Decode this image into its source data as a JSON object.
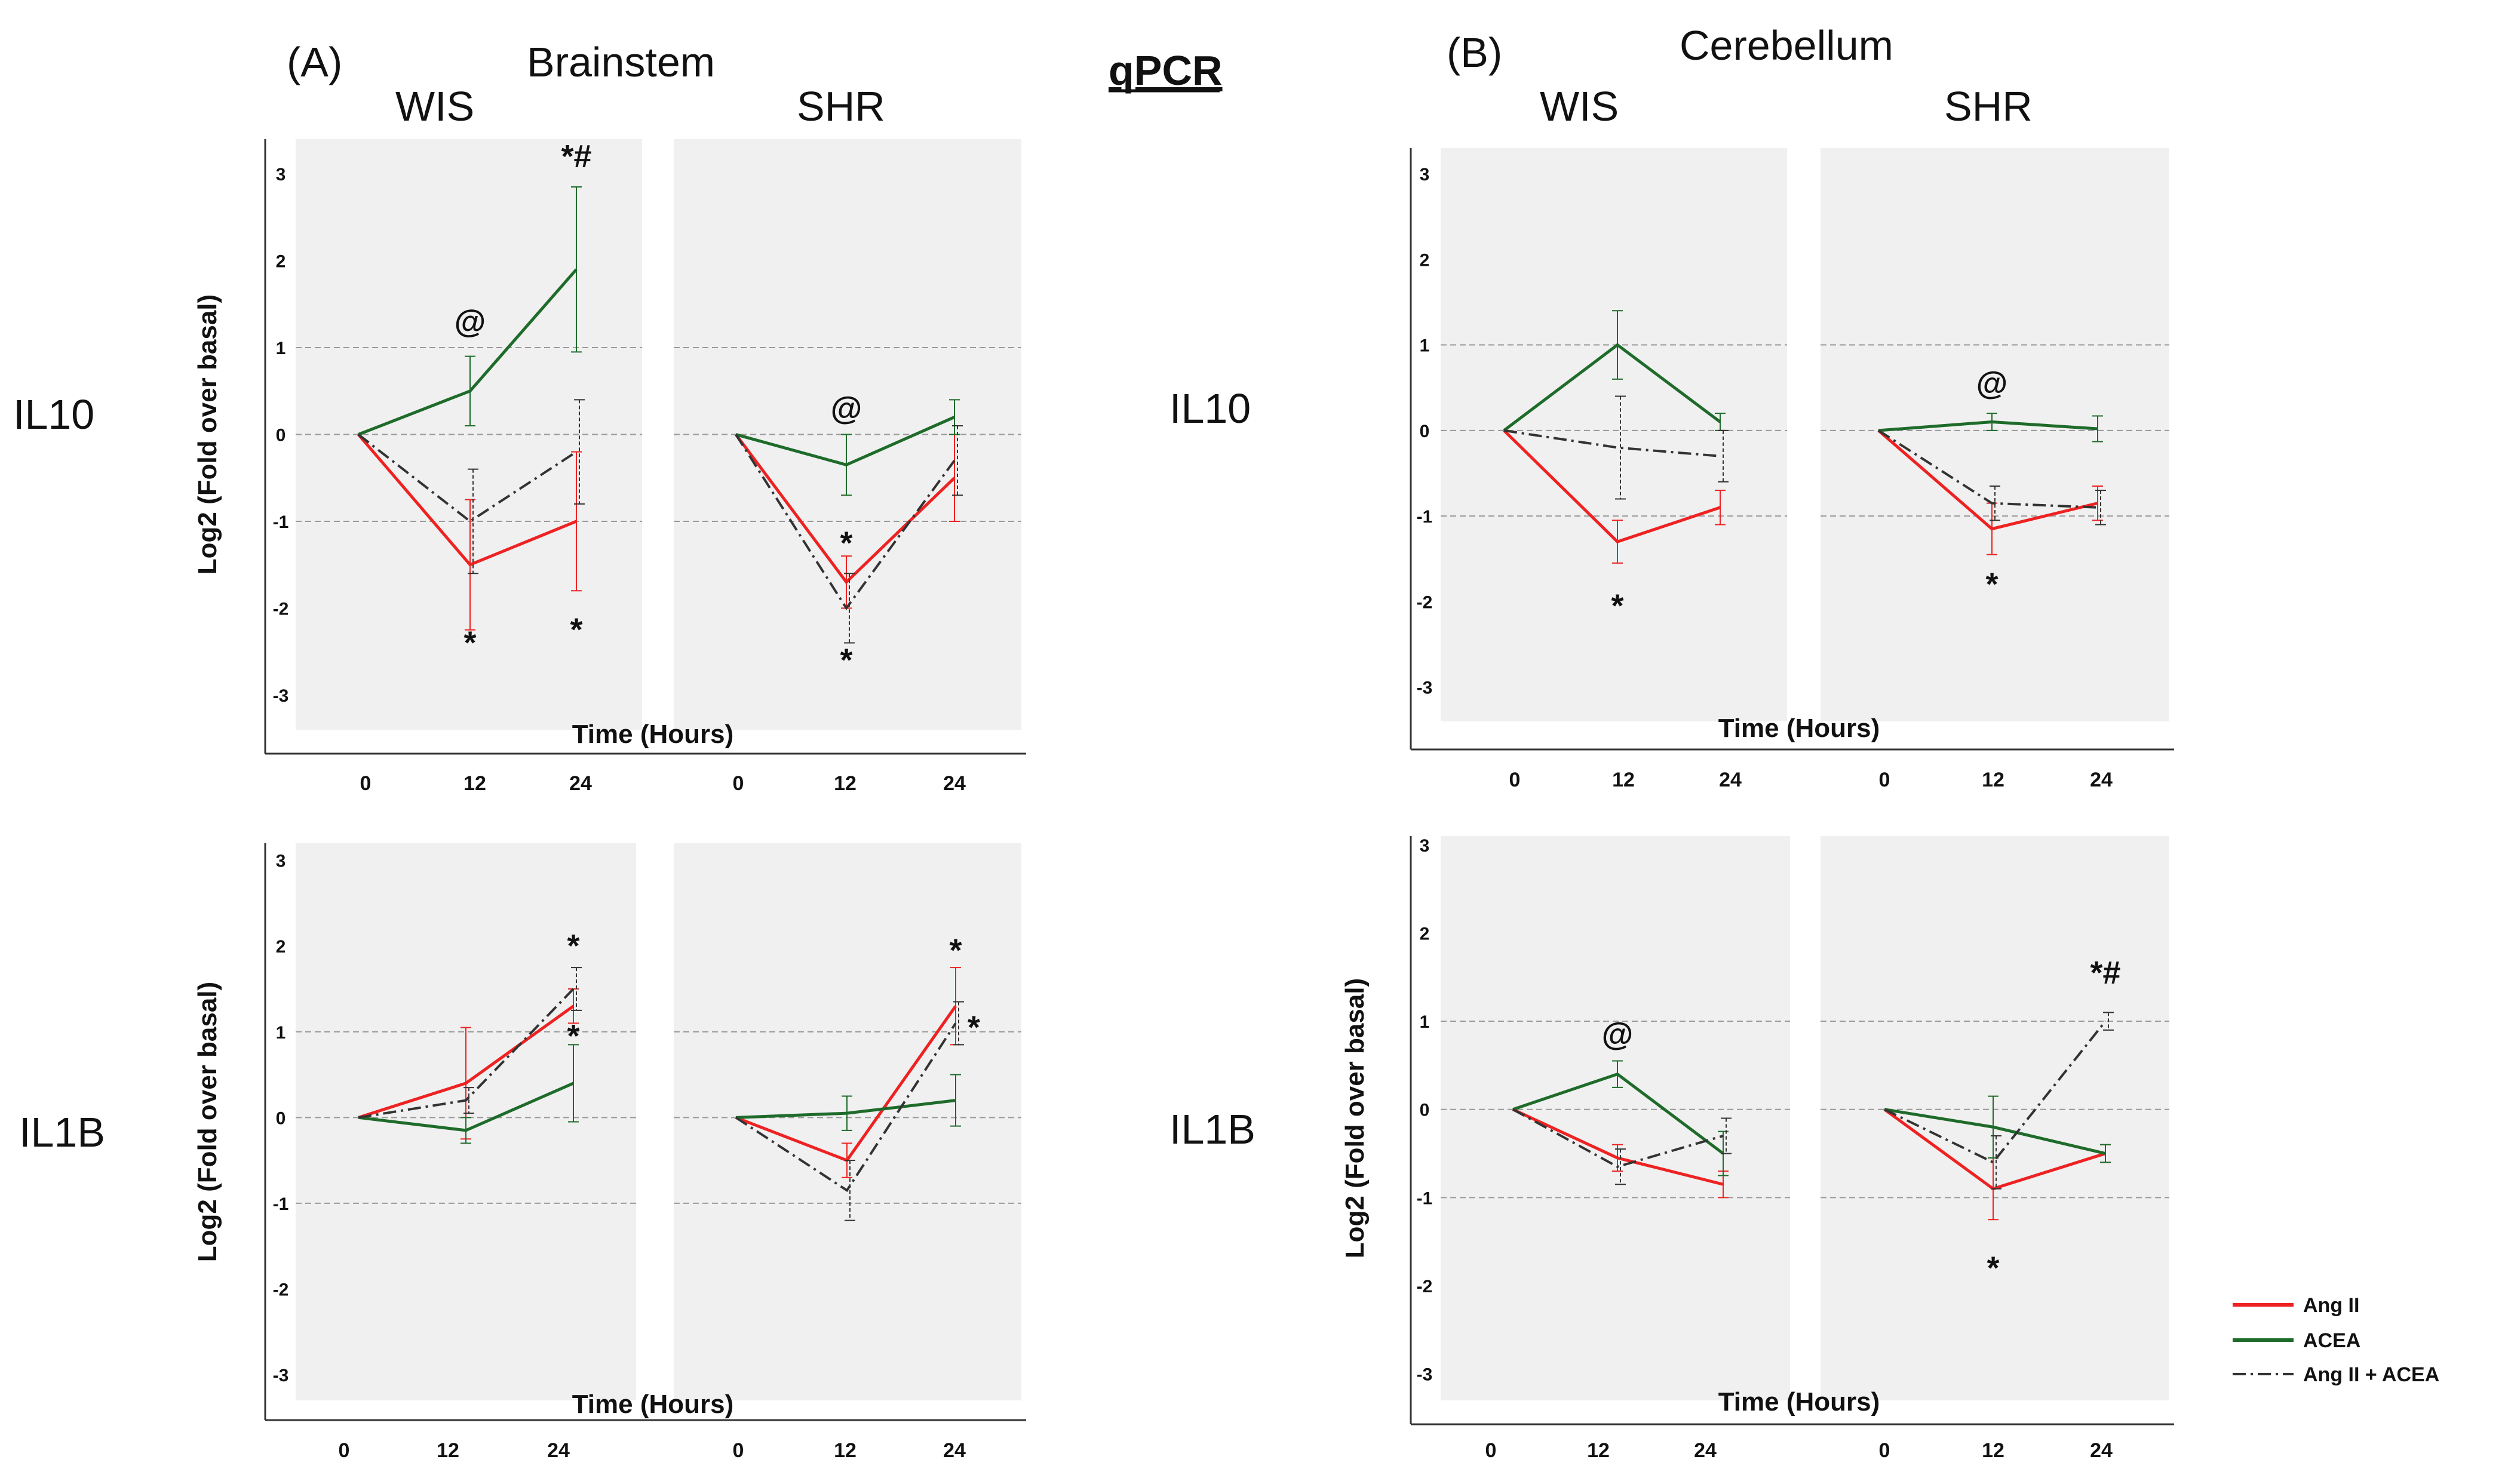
{
  "figure": {
    "method_title": "qPCR",
    "section_a_label": "(A)",
    "section_a_region": "Brainstem",
    "section_b_label": "(B)",
    "section_b_region": "Cerebellum",
    "row_labels": [
      "IL10",
      "IL1B"
    ],
    "strain_labels": [
      "WIS",
      "SHR"
    ],
    "colors": {
      "ang": "#ee2222",
      "acea": "#1e6b2a",
      "combo": "#333333",
      "panel_bg": "#f0f0f0"
    }
  },
  "legend": {
    "entries": [
      {
        "key": "ang",
        "label": "Ang II"
      },
      {
        "key": "acea",
        "label": "ACEA"
      },
      {
        "key": "combo",
        "label": "Ang II + ACEA"
      }
    ]
  },
  "chart_data": [
    {
      "id": "brainstem-il10",
      "type": "line",
      "region": "Brainstem",
      "gene": "IL10",
      "xlabel": "Time (Hours)",
      "ylabel": "Log2 (Fold over basal)",
      "ylim": [
        -3.4,
        3.4
      ],
      "yticks": [
        3,
        2,
        1,
        0,
        -1,
        -2,
        -3
      ],
      "x": [
        0,
        12,
        24
      ],
      "facets": [
        {
          "name": "WIS",
          "series": [
            {
              "key": "ang",
              "values": [
                0,
                -1.5,
                -1.0
              ],
              "errors": [
                0,
                0.75,
                0.8
              ]
            },
            {
              "key": "acea",
              "values": [
                0,
                0.5,
                1.9
              ],
              "errors": [
                0,
                0.4,
                0.95
              ]
            },
            {
              "key": "combo",
              "values": [
                0,
                -1.0,
                -0.2
              ],
              "errors": [
                0,
                0.6,
                0.6
              ]
            }
          ],
          "annotations": [
            {
              "text": "@",
              "x": 12,
              "y": 1.3
            },
            {
              "text": "*",
              "x": 12,
              "y": -2.4
            },
            {
              "text": "*",
              "x": 24,
              "y": -2.25
            },
            {
              "text": "*#",
              "x": 24,
              "y": 3.2
            }
          ]
        },
        {
          "name": "SHR",
          "series": [
            {
              "key": "ang",
              "values": [
                0,
                -1.7,
                -0.5
              ],
              "errors": [
                0,
                0.3,
                0.5
              ]
            },
            {
              "key": "acea",
              "values": [
                0,
                -0.35,
                0.2
              ],
              "errors": [
                0,
                0.35,
                0.2
              ]
            },
            {
              "key": "combo",
              "values": [
                0,
                -2.0,
                -0.3
              ],
              "errors": [
                0,
                0.4,
                0.4
              ]
            }
          ],
          "annotations": [
            {
              "text": "@",
              "x": 12,
              "y": 0.3
            },
            {
              "text": "*",
              "x": 12,
              "y": -1.25
            },
            {
              "text": "*",
              "x": 12,
              "y": -2.6
            }
          ]
        }
      ]
    },
    {
      "id": "brainstem-il1b",
      "type": "line",
      "region": "Brainstem",
      "gene": "IL1B",
      "xlabel": "Time (Hours)",
      "ylabel": "Log2 (Fold over basal)",
      "ylim": [
        -3.3,
        3.2
      ],
      "yticks": [
        3,
        2,
        1,
        0,
        -1,
        -2,
        -3
      ],
      "x": [
        0,
        12,
        24
      ],
      "facets": [
        {
          "name": "WIS",
          "series": [
            {
              "key": "ang",
              "values": [
                0,
                0.4,
                1.3
              ],
              "errors": [
                0,
                0.65,
                0.2
              ]
            },
            {
              "key": "acea",
              "values": [
                0,
                -0.15,
                0.4
              ],
              "errors": [
                0,
                0.15,
                0.45
              ]
            },
            {
              "key": "combo",
              "values": [
                0,
                0.2,
                1.5
              ],
              "errors": [
                0,
                0.15,
                0.25
              ]
            }
          ],
          "annotations": [
            {
              "text": "*",
              "x": 24,
              "y": 2.0
            },
            {
              "text": "*",
              "x": 24,
              "y": 0.95
            }
          ]
        },
        {
          "name": "SHR",
          "series": [
            {
              "key": "ang",
              "values": [
                0,
                -0.5,
                1.3
              ],
              "errors": [
                0,
                0.2,
                0.45
              ]
            },
            {
              "key": "acea",
              "values": [
                0,
                0.05,
                0.2
              ],
              "errors": [
                0,
                0.2,
                0.3
              ]
            },
            {
              "key": "combo",
              "values": [
                0,
                -0.85,
                1.1
              ],
              "errors": [
                0,
                0.35,
                0.25
              ]
            }
          ],
          "annotations": [
            {
              "text": "*",
              "x": 24,
              "y": 1.95
            },
            {
              "text": "*",
              "x": 26,
              "y": 1.05
            }
          ]
        }
      ]
    },
    {
      "id": "cerebellum-il10",
      "type": "line",
      "region": "Cerebellum",
      "gene": "IL10",
      "xlabel": "Time (Hours)",
      "ylabel": "",
      "ylim": [
        -3.4,
        3.3
      ],
      "yticks": [
        3,
        2,
        1,
        0,
        -1,
        -2,
        -3
      ],
      "x": [
        0,
        12,
        24
      ],
      "facets": [
        {
          "name": "WIS",
          "series": [
            {
              "key": "ang",
              "values": [
                0,
                -1.3,
                -0.9
              ],
              "errors": [
                0,
                0.25,
                0.2
              ]
            },
            {
              "key": "acea",
              "values": [
                0,
                1.0,
                0.1
              ],
              "errors": [
                0,
                0.4,
                0.1
              ]
            },
            {
              "key": "combo",
              "values": [
                0,
                -0.2,
                -0.3
              ],
              "errors": [
                0,
                0.6,
                0.3
              ]
            }
          ],
          "annotations": [
            {
              "text": "*",
              "x": 12,
              "y": -2.05
            }
          ]
        },
        {
          "name": "SHR",
          "series": [
            {
              "key": "ang",
              "values": [
                0,
                -1.15,
                -0.85
              ],
              "errors": [
                0,
                0.3,
                0.2
              ]
            },
            {
              "key": "acea",
              "values": [
                0,
                0.1,
                0.02
              ],
              "errors": [
                0,
                0.1,
                0.15
              ]
            },
            {
              "key": "combo",
              "values": [
                0,
                -0.85,
                -0.9
              ],
              "errors": [
                0,
                0.2,
                0.2
              ]
            }
          ],
          "annotations": [
            {
              "text": "@",
              "x": 12,
              "y": 0.55
            },
            {
              "text": "*",
              "x": 12,
              "y": -1.8
            }
          ]
        }
      ]
    },
    {
      "id": "cerebellum-il1b",
      "type": "line",
      "region": "Cerebellum",
      "gene": "IL1B",
      "xlabel": "Time (Hours)",
      "ylabel": "Log2 (Fold over basal)",
      "ylim": [
        -3.3,
        3.1
      ],
      "yticks": [
        3,
        2,
        1,
        0,
        -1,
        -2,
        -3
      ],
      "x": [
        0,
        12,
        24
      ],
      "facets": [
        {
          "name": "WIS",
          "series": [
            {
              "key": "ang",
              "values": [
                0,
                -0.55,
                -0.85
              ],
              "errors": [
                0,
                0.15,
                0.15
              ]
            },
            {
              "key": "acea",
              "values": [
                0,
                0.4,
                -0.5
              ],
              "errors": [
                0,
                0.15,
                0.25
              ]
            },
            {
              "key": "combo",
              "values": [
                0,
                -0.65,
                -0.3
              ],
              "errors": [
                0,
                0.2,
                0.2
              ]
            }
          ],
          "annotations": [
            {
              "text": "@",
              "x": 12,
              "y": 0.85
            }
          ]
        },
        {
          "name": "SHR",
          "series": [
            {
              "key": "ang",
              "values": [
                0,
                -0.9,
                -0.5
              ],
              "errors": [
                0,
                0.35,
                0.1
              ]
            },
            {
              "key": "acea",
              "values": [
                0,
                -0.2,
                -0.5
              ],
              "errors": [
                0,
                0.35,
                0.1
              ]
            },
            {
              "key": "combo",
              "values": [
                0,
                -0.6,
                1.0
              ],
              "errors": [
                0,
                0.3,
                0.1
              ]
            }
          ],
          "annotations": [
            {
              "text": "*#",
              "x": 24,
              "y": 1.55
            },
            {
              "text": "*",
              "x": 12,
              "y": -1.8
            }
          ]
        }
      ]
    }
  ]
}
